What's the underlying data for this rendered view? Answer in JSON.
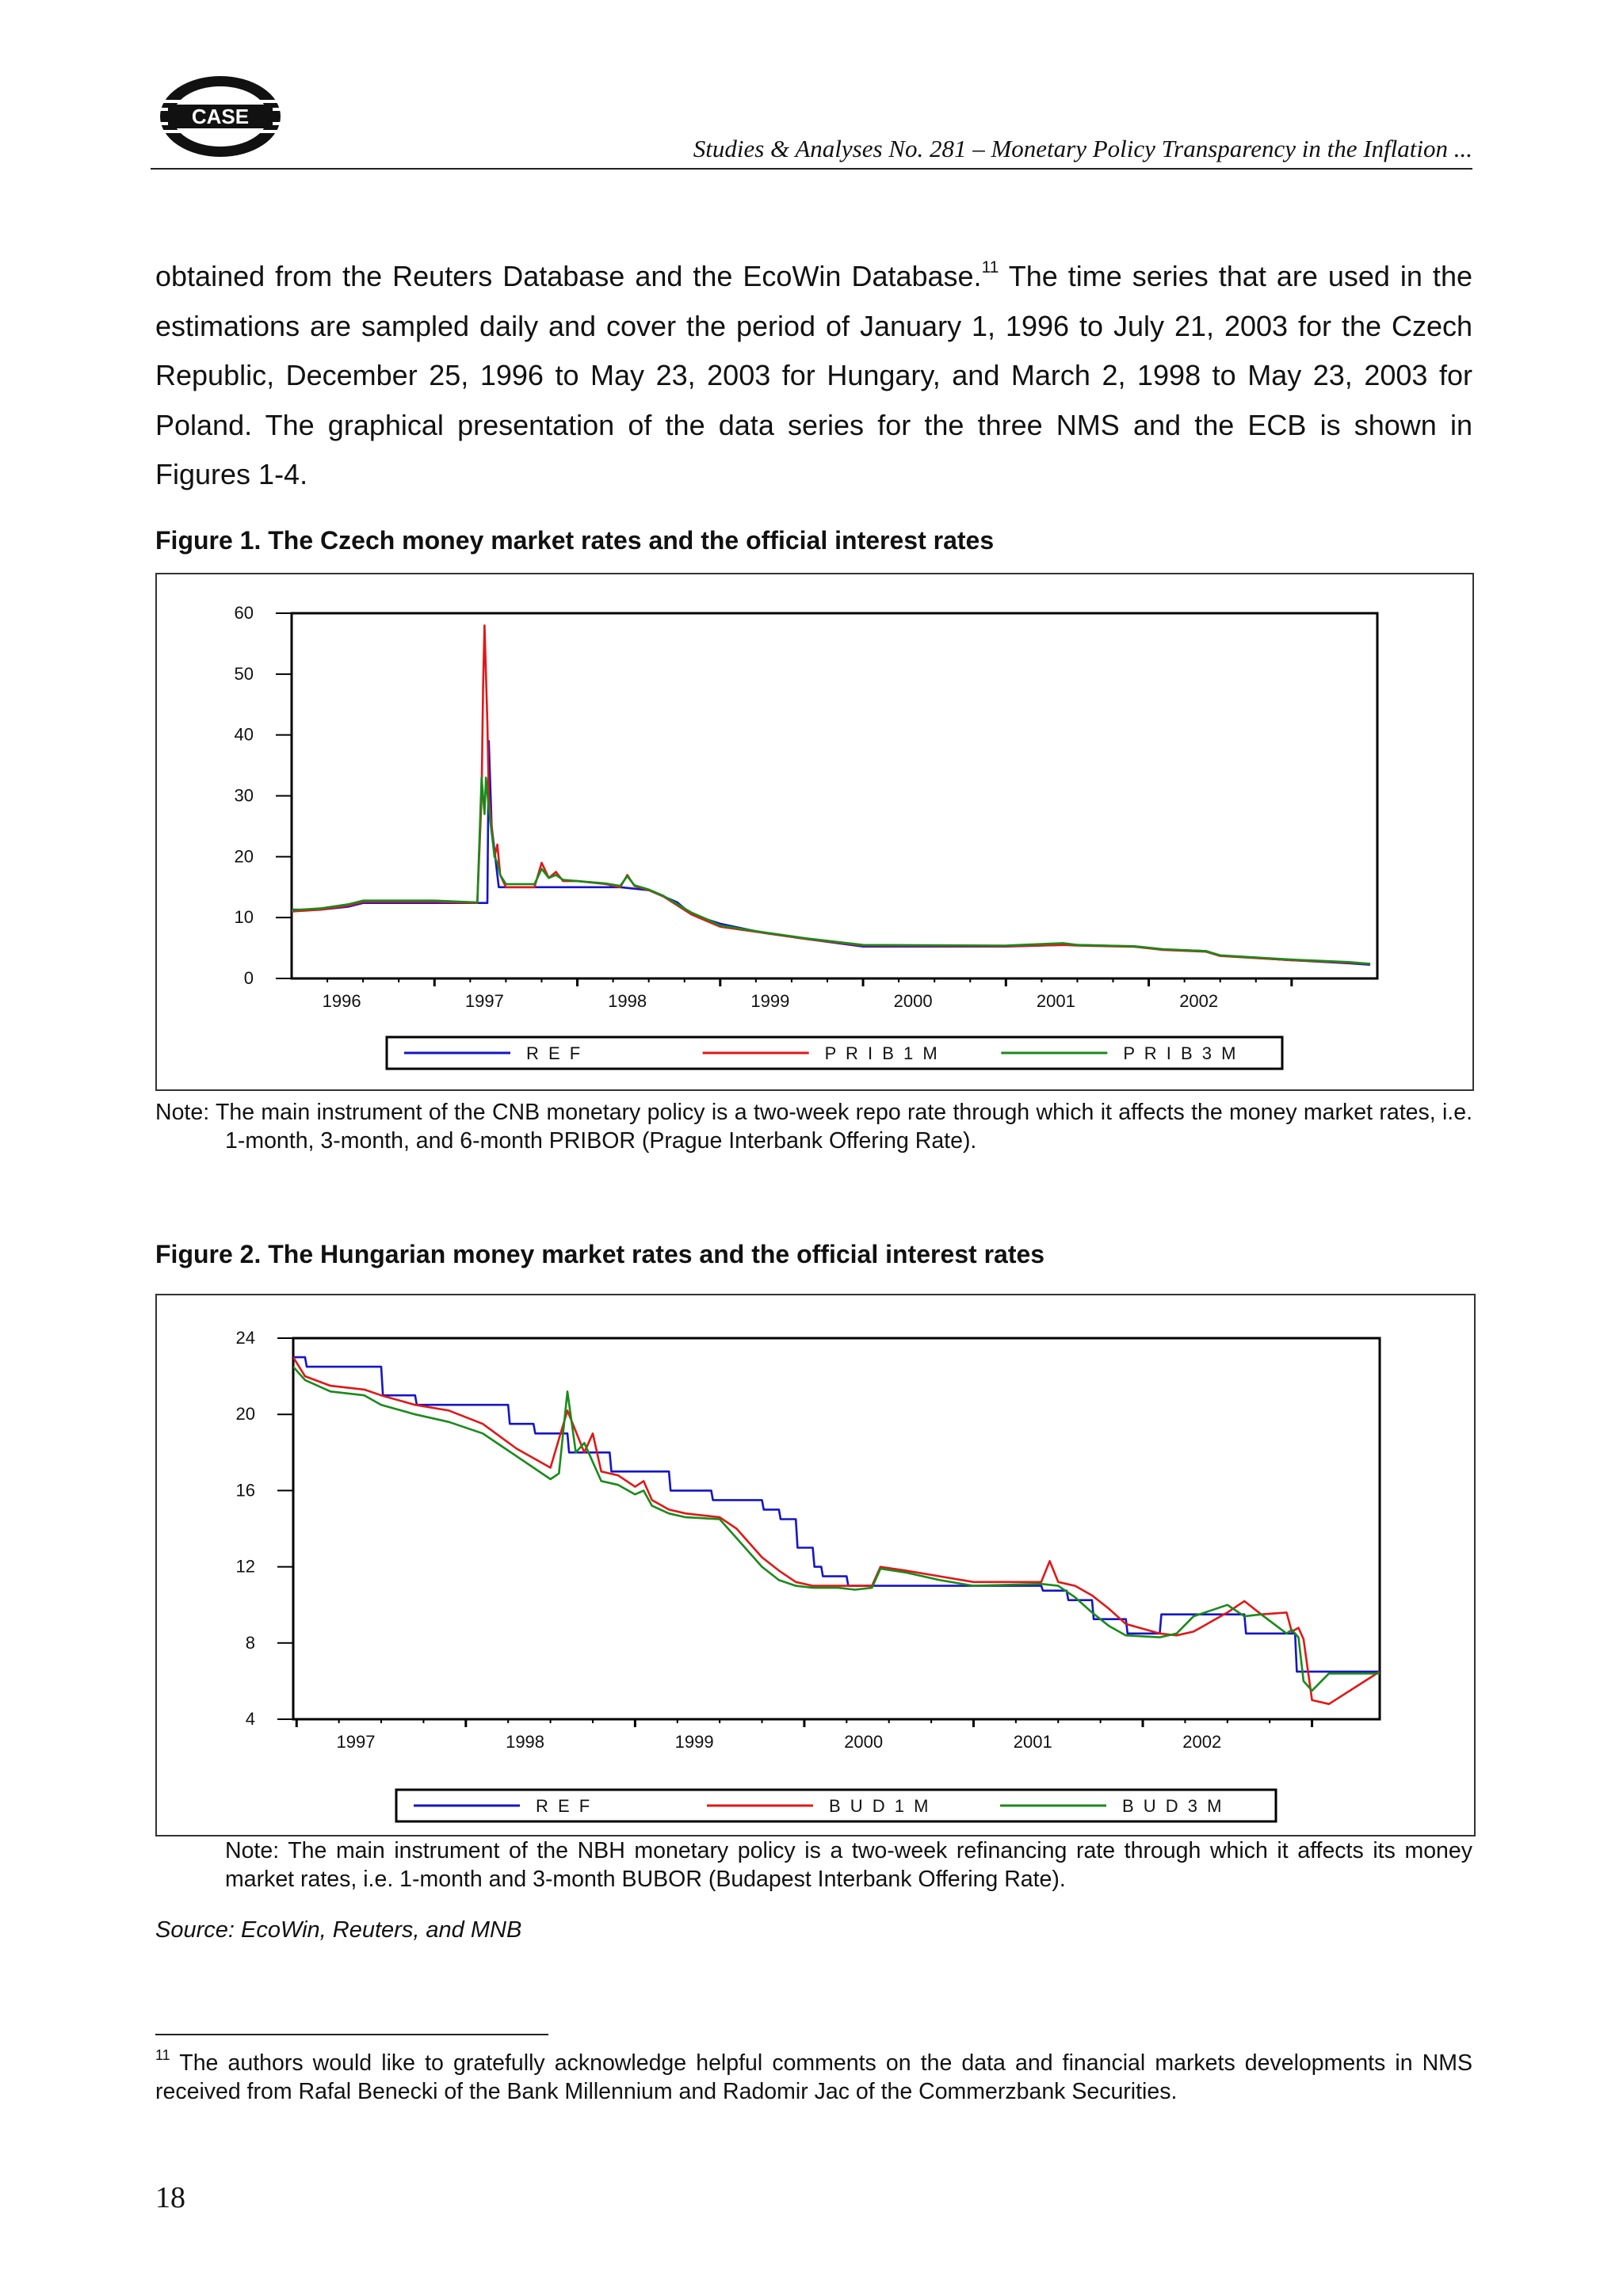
{
  "header": {
    "logo_text": "CASE",
    "running_head": "Studies & Analyses No. 281 – Monetary Policy Transparency in the Inflation ..."
  },
  "body": {
    "paragraph_start": "obtained from the Reuters Database and the EcoWin Database.",
    "footnote_ref": "11",
    "paragraph_rest": " The time series that are used in the estimations are sampled daily and cover the period of January 1, 1996 to July 21, 2003 for the Czech Republic, December 25, 1996 to May 23, 2003 for Hungary, and March 2, 1998 to May 23, 2003 for Poland. The graphical presentation of the data series for the three NMS and the ECB is shown in Figures 1-4."
  },
  "figure1": {
    "title": "Figure 1. The Czech money market rates and the official interest rates",
    "note_label": "Note:",
    "note_text": "The main instrument of the CNB monetary policy is a two-week repo rate through which it affects the money market rates, i.e. 1-month, 3-month, and 6-month PRIBOR (Prague Interbank Offering Rate)."
  },
  "figure2": {
    "title": "Figure 2. The Hungarian money market rates and the official interest rates",
    "note": "Note: The main instrument of the NBH monetary policy is a two-week refinancing rate through which it affects its money market rates, i.e. 1-month and 3-month BUBOR (Budapest Interbank Offering Rate)."
  },
  "source": "Source: EcoWin, Reuters, and MNB",
  "footnote": {
    "number": "11",
    "text": " The authors would like to gratefully acknowledge helpful comments on the data and financial markets developments in NMS received from Rafal Benecki of the Bank Millennium and Radomir Jac of the Commerzbank Securities."
  },
  "page_number": "18",
  "colors": {
    "ref": "#1515c8",
    "m1": "#e01818",
    "m3": "#1a8a1a",
    "frame": "#000000"
  },
  "chart_data": [
    {
      "type": "line",
      "id": "czech",
      "title": "",
      "xlabel": "",
      "ylabel": "",
      "xlim": [
        1996.0,
        2003.6
      ],
      "ylim": [
        0,
        60
      ],
      "yticks": [
        0,
        10,
        20,
        30,
        40,
        50,
        60
      ],
      "xtick_labels": [
        "1996",
        "1997",
        "1998",
        "1999",
        "2000",
        "2001",
        "2002"
      ],
      "xtick_label_positions": [
        1996.35,
        1997.35,
        1998.35,
        1999.35,
        2000.35,
        2001.35,
        2002.35
      ],
      "xtick_marks": [
        1997.0,
        1998.0,
        1999.0,
        2000.0,
        2001.0,
        2002.0,
        2003.0
      ],
      "legend_position": "bottom",
      "grid": false,
      "series": [
        {
          "name": "R E F",
          "color_key": "ref",
          "x": [
            1996.0,
            1996.2,
            1996.4,
            1996.5,
            1997.0,
            1997.37,
            1997.38,
            1997.4,
            1997.45,
            1997.5,
            1998.0,
            1998.3,
            1998.5,
            1998.7,
            1998.8,
            1999.0,
            1999.3,
            1999.6,
            2000.0,
            2001.0,
            2001.4,
            2001.5,
            2001.9,
            2002.1,
            2002.4,
            2002.5,
            2003.0,
            2003.4,
            2003.55
          ],
          "y": [
            11.3,
            11.3,
            11.8,
            12.4,
            12.4,
            12.4,
            39.0,
            25.0,
            15.0,
            15.0,
            15.0,
            15.0,
            14.5,
            12.5,
            10.5,
            9.0,
            7.5,
            6.5,
            5.25,
            5.25,
            5.5,
            5.5,
            5.25,
            4.75,
            4.5,
            3.75,
            3.0,
            2.5,
            2.25
          ]
        },
        {
          "name": "P R I B 1 M",
          "color_key": "m1",
          "x": [
            1996.0,
            1996.2,
            1996.4,
            1996.5,
            1997.0,
            1997.3,
            1997.33,
            1997.34,
            1997.35,
            1997.36,
            1997.37,
            1997.38,
            1997.4,
            1997.42,
            1997.44,
            1997.46,
            1997.5,
            1997.7,
            1997.75,
            1997.8,
            1997.85,
            1997.9,
            1998.0,
            1998.2,
            1998.3,
            1998.35,
            1998.4,
            1998.5,
            1998.6,
            1998.7,
            1998.8,
            1998.9,
            1999.0,
            1999.3,
            1999.6,
            2000.0,
            2001.0,
            2001.4,
            2001.5,
            2001.9,
            2002.1,
            2002.4,
            2002.5,
            2003.0,
            2003.4,
            2003.55
          ],
          "y": [
            11.0,
            11.3,
            12.0,
            12.6,
            12.6,
            12.4,
            30.0,
            48.0,
            58.0,
            50.0,
            42.0,
            30.0,
            25.0,
            20.0,
            22.0,
            17.0,
            15.0,
            15.0,
            19.0,
            16.5,
            17.5,
            16.0,
            16.0,
            15.5,
            15.0,
            17.0,
            15.2,
            14.5,
            13.5,
            12.0,
            10.5,
            9.5,
            8.5,
            7.5,
            6.5,
            5.4,
            5.3,
            5.5,
            5.4,
            5.2,
            4.7,
            4.4,
            3.7,
            3.0,
            2.6,
            2.4
          ]
        },
        {
          "name": "P R I B 3 M",
          "color_key": "m3",
          "x": [
            1996.0,
            1996.2,
            1996.4,
            1996.5,
            1997.0,
            1997.3,
            1997.33,
            1997.35,
            1997.36,
            1997.38,
            1997.4,
            1997.42,
            1997.44,
            1997.46,
            1997.5,
            1997.7,
            1997.75,
            1997.8,
            1997.85,
            1997.9,
            1998.0,
            1998.2,
            1998.3,
            1998.35,
            1998.4,
            1998.5,
            1998.6,
            1998.7,
            1998.8,
            1998.9,
            1999.0,
            1999.3,
            1999.6,
            2000.0,
            2001.0,
            2001.4,
            2001.5,
            2001.9,
            2002.1,
            2002.4,
            2002.5,
            2003.0,
            2003.4,
            2003.55
          ],
          "y": [
            11.2,
            11.5,
            12.2,
            12.8,
            12.8,
            12.5,
            33.0,
            27.0,
            33.0,
            28.0,
            24.0,
            20.0,
            19.0,
            17.0,
            15.5,
            15.5,
            18.0,
            16.5,
            17.0,
            16.2,
            16.0,
            15.6,
            15.2,
            16.8,
            15.3,
            14.6,
            13.6,
            12.2,
            10.8,
            9.8,
            8.7,
            7.6,
            6.6,
            5.5,
            5.4,
            5.8,
            5.5,
            5.3,
            4.8,
            4.5,
            3.8,
            3.1,
            2.7,
            2.4
          ]
        }
      ]
    },
    {
      "type": "line",
      "id": "hungary",
      "title": "",
      "xlabel": "",
      "ylabel": "",
      "xlim": [
        1996.98,
        2003.4
      ],
      "ylim": [
        4,
        24
      ],
      "yticks": [
        4,
        8,
        12,
        16,
        20,
        24
      ],
      "xtick_labels": [
        "1997",
        "1998",
        "1999",
        "2000",
        "2001",
        "2002"
      ],
      "xtick_label_positions": [
        1997.35,
        1998.35,
        1999.35,
        2000.35,
        2001.35,
        2002.35
      ],
      "xtick_marks": [
        1997.0,
        1998.0,
        1999.0,
        2000.0,
        2001.0,
        2002.0,
        2003.0
      ],
      "legend_position": "bottom",
      "grid": false,
      "series": [
        {
          "name": "R E F",
          "color_key": "ref",
          "x": [
            1996.98,
            1997.05,
            1997.06,
            1997.5,
            1997.51,
            1997.7,
            1997.71,
            1998.25,
            1998.26,
            1998.4,
            1998.41,
            1998.6,
            1998.61,
            1998.85,
            1998.86,
            1999.2,
            1999.21,
            1999.45,
            1999.46,
            1999.75,
            1999.76,
            1999.85,
            1999.86,
            1999.95,
            1999.96,
            2000.05,
            2000.06,
            2000.1,
            2000.11,
            2000.25,
            2000.26,
            2001.0,
            2001.01,
            2001.4,
            2001.41,
            2001.55,
            2001.56,
            2001.7,
            2001.71,
            2001.9,
            2001.91,
            2002.1,
            2002.11,
            2002.25,
            2002.26,
            2002.6,
            2002.61,
            2002.9,
            2002.91,
            2003.4
          ],
          "y": [
            23.0,
            23.0,
            22.5,
            22.5,
            21.0,
            21.0,
            20.5,
            20.5,
            19.5,
            19.5,
            19.0,
            19.0,
            18.0,
            18.0,
            17.0,
            17.0,
            16.0,
            16.0,
            15.5,
            15.5,
            15.0,
            15.0,
            14.5,
            14.5,
            13.0,
            13.0,
            12.0,
            12.0,
            11.5,
            11.5,
            11.0,
            11.0,
            11.0,
            11.0,
            10.75,
            10.75,
            10.25,
            10.25,
            9.25,
            9.25,
            8.5,
            8.5,
            9.5,
            9.5,
            9.5,
            9.5,
            8.5,
            8.5,
            6.5,
            6.5
          ]
        },
        {
          "name": "B U D 1 M",
          "color_key": "m1",
          "x": [
            1996.98,
            1997.05,
            1997.2,
            1997.4,
            1997.5,
            1997.7,
            1997.9,
            1998.1,
            1998.3,
            1998.5,
            1998.6,
            1998.7,
            1998.75,
            1998.8,
            1998.9,
            1999.0,
            1999.05,
            1999.1,
            1999.2,
            1999.3,
            1999.5,
            1999.6,
            1999.75,
            1999.85,
            1999.95,
            2000.05,
            2000.2,
            2000.3,
            2000.4,
            2000.45,
            2000.6,
            2000.8,
            2001.0,
            2001.4,
            2001.45,
            2001.5,
            2001.6,
            2001.7,
            2001.8,
            2001.9,
            2002.1,
            2002.2,
            2002.3,
            2002.5,
            2002.6,
            2002.7,
            2002.85,
            2002.88,
            2002.92,
            2002.95,
            2003.0,
            2003.1,
            2003.4
          ],
          "y": [
            23.0,
            22.0,
            21.5,
            21.3,
            21.0,
            20.5,
            20.2,
            19.5,
            18.2,
            17.2,
            20.2,
            18.0,
            19.0,
            17.0,
            16.8,
            16.2,
            16.5,
            15.5,
            15.0,
            14.8,
            14.6,
            14.0,
            12.5,
            11.8,
            11.2,
            11.0,
            11.0,
            11.0,
            11.0,
            12.0,
            11.8,
            11.5,
            11.2,
            11.2,
            12.3,
            11.2,
            11.0,
            10.5,
            9.8,
            9.0,
            8.5,
            8.4,
            8.6,
            9.6,
            10.2,
            9.5,
            9.6,
            8.6,
            8.8,
            8.2,
            5.0,
            4.8,
            6.5
          ]
        },
        {
          "name": "B U D 3 M",
          "color_key": "m3",
          "x": [
            1996.98,
            1997.05,
            1997.2,
            1997.4,
            1997.5,
            1997.7,
            1997.9,
            1998.1,
            1998.3,
            1998.5,
            1998.55,
            1998.6,
            1998.65,
            1998.7,
            1998.8,
            1998.9,
            1999.0,
            1999.05,
            1999.1,
            1999.2,
            1999.3,
            1999.5,
            1999.6,
            1999.75,
            1999.85,
            1999.95,
            2000.05,
            2000.2,
            2000.3,
            2000.4,
            2000.45,
            2000.6,
            2000.8,
            2001.0,
            2001.4,
            2001.5,
            2001.6,
            2001.7,
            2001.8,
            2001.9,
            2002.1,
            2002.2,
            2002.3,
            2002.5,
            2002.6,
            2002.7,
            2002.85,
            2002.88,
            2002.92,
            2002.95,
            2003.0,
            2003.1,
            2003.4
          ],
          "y": [
            22.5,
            21.8,
            21.2,
            21.0,
            20.5,
            20.0,
            19.6,
            19.0,
            17.8,
            16.6,
            16.9,
            21.2,
            18.0,
            18.5,
            16.5,
            16.3,
            15.8,
            16.0,
            15.2,
            14.8,
            14.6,
            14.5,
            13.5,
            12.0,
            11.3,
            11.0,
            10.9,
            10.9,
            10.8,
            10.9,
            11.9,
            11.7,
            11.3,
            11.0,
            11.1,
            11.0,
            10.4,
            9.6,
            8.9,
            8.4,
            8.3,
            8.5,
            9.4,
            10.0,
            9.4,
            9.5,
            8.5,
            8.7,
            8.3,
            6.0,
            5.5,
            6.4,
            6.4
          ]
        }
      ]
    }
  ]
}
